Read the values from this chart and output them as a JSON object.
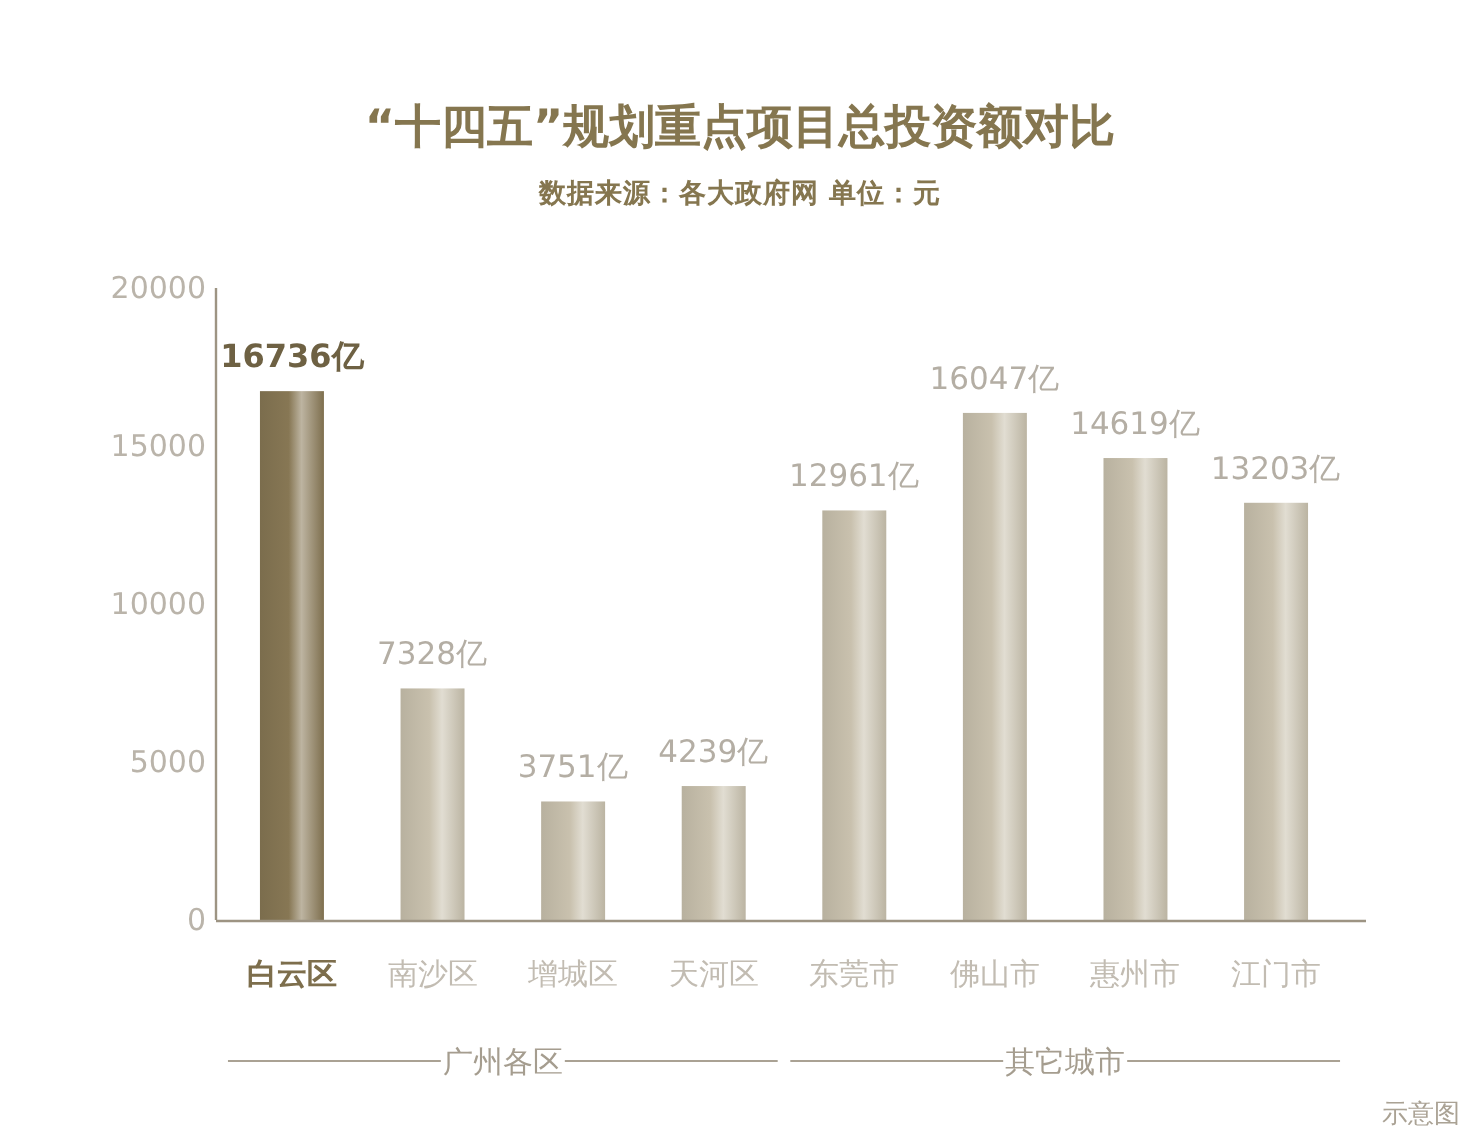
{
  "chart_data": {
    "type": "bar",
    "title": "“十四五”规划重点项目总投资额对比",
    "subtitle": "数据来源：各大政府网  单位：元",
    "categories": [
      "白云区",
      "南沙区",
      "增城区",
      "天河区",
      "东莞市",
      "佛山市",
      "惠州市",
      "江门市"
    ],
    "values": [
      16736,
      7328,
      3751,
      4239,
      12961,
      16047,
      14619,
      13203
    ],
    "colors": [
      "#877754",
      "#c9c1ae",
      "#c9c1ae",
      "#c9c1ae",
      "#c9c1ae",
      "#c9c1ae",
      "#c9c1ae",
      "#c9c1ae"
    ],
    "value_labels": [
      "16736亿",
      "7328亿",
      "3751亿",
      "4239亿",
      "12961亿",
      "16047亿",
      "14619亿",
      "13203亿"
    ],
    "ylim": [
      0,
      20000
    ],
    "yticks": [
      0,
      5000,
      10000,
      15000,
      20000
    ],
    "annotations": [
      "广州各区",
      "其它城市",
      "示意图"
    ]
  }
}
